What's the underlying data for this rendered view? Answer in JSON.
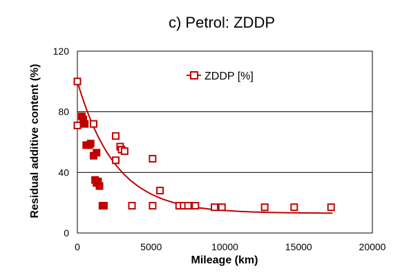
{
  "chart_data": {
    "type": "scatter",
    "title": "c) Petrol: ZDDP",
    "xlabel": "Mileage (km)",
    "ylabel": "Residual additive content (%)",
    "xlim": [
      0,
      20000
    ],
    "ylim": [
      0,
      120
    ],
    "x_ticks": [
      "0",
      "5000",
      "10000",
      "15000",
      "20000"
    ],
    "y_ticks": [
      "0",
      "40",
      "80",
      "120"
    ],
    "grid": "horizontal",
    "legend_position": "top-center",
    "colors": {
      "series": "#c00000",
      "grid": "#000000",
      "axis": "#000000"
    },
    "series": [
      {
        "name": "ZDDP [%]",
        "marker": "open-square",
        "points": [
          {
            "x": 0,
            "y": 100
          },
          {
            "x": 0,
            "y": 71
          },
          {
            "x": 1100,
            "y": 72
          },
          {
            "x": 2600,
            "y": 64
          },
          {
            "x": 2900,
            "y": 57
          },
          {
            "x": 3000,
            "y": 55
          },
          {
            "x": 3200,
            "y": 54
          },
          {
            "x": 2600,
            "y": 48
          },
          {
            "x": 5100,
            "y": 49
          },
          {
            "x": 5600,
            "y": 28
          },
          {
            "x": 3700,
            "y": 18
          },
          {
            "x": 5100,
            "y": 18
          },
          {
            "x": 6900,
            "y": 18
          },
          {
            "x": 7200,
            "y": 18
          },
          {
            "x": 7500,
            "y": 18
          },
          {
            "x": 8000,
            "y": 18
          },
          {
            "x": 9300,
            "y": 17
          },
          {
            "x": 9800,
            "y": 17
          },
          {
            "x": 12700,
            "y": 17
          },
          {
            "x": 14700,
            "y": 17
          },
          {
            "x": 17200,
            "y": 17
          }
        ]
      },
      {
        "marker": "filled-square",
        "points": [
          {
            "x": 300,
            "y": 77
          },
          {
            "x": 400,
            "y": 75
          },
          {
            "x": 500,
            "y": 72
          },
          {
            "x": 600,
            "y": 58
          },
          {
            "x": 800,
            "y": 58
          },
          {
            "x": 900,
            "y": 59
          },
          {
            "x": 1100,
            "y": 51
          },
          {
            "x": 1300,
            "y": 53
          },
          {
            "x": 1200,
            "y": 35
          },
          {
            "x": 1300,
            "y": 33
          },
          {
            "x": 1400,
            "y": 34
          },
          {
            "x": 1500,
            "y": 31
          },
          {
            "x": 1700,
            "y": 18
          },
          {
            "x": 1800,
            "y": 18
          }
        ]
      },
      {
        "marker": "line",
        "curve": {
          "type": "exponential",
          "asymptote": 13,
          "amplitude": 87,
          "decay_km": 2600
        },
        "x_range": [
          0,
          17300
        ]
      }
    ]
  }
}
